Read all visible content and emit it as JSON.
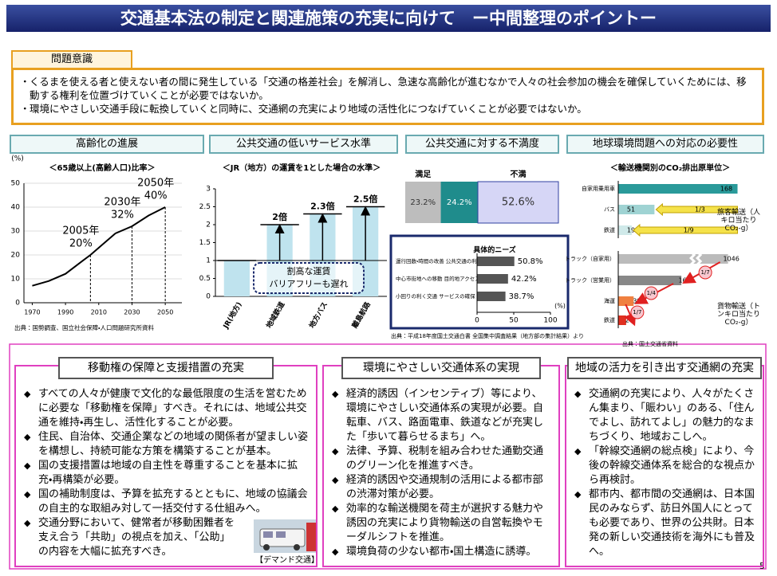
{
  "title": "交通基本法の制定と関連施策の充実に向けて　ー中間整理のポイントー",
  "problem": {
    "label": "問題意識",
    "bullets": [
      "くるまを使える者と使えない者の間に発生している「交通の格差社会」を解消し、急速な高齢化が進むなかで人々の社会参加の機会を確保していくためには、移動する権利を位置づけていくことが必要ではないか。",
      "環境にやさしい交通手段に転換していくと同時に、交通網の充実により地域の活性化につなげていくことが必要ではないか。"
    ]
  },
  "section_headers": [
    "高齢化の進展",
    "公共交通の低いサービス水準",
    "公共交通に対する不満度",
    "地球環境問題への対応の必要性"
  ],
  "chart_data": [
    {
      "type": "line",
      "title": "＜65歳以上(高齢人口)比率＞",
      "y_unit": "(%)",
      "x": [
        1970,
        1980,
        1990,
        2000,
        2005,
        2010,
        2020,
        2030,
        2040,
        2050
      ],
      "values": [
        7.1,
        9.1,
        12.1,
        17.4,
        20,
        23,
        29,
        32,
        36.5,
        40
      ],
      "point_labels": [
        null,
        null,
        null,
        null,
        "2005年",
        null,
        null,
        "2030年",
        null,
        "2050年"
      ],
      "value_labels": [
        null,
        null,
        null,
        null,
        "20%",
        null,
        null,
        "32%",
        null,
        "40%"
      ],
      "xlim": [
        1965,
        2060
      ],
      "xticks": [
        1970,
        1990,
        2010,
        2030,
        2050
      ],
      "ylim": [
        0,
        50
      ],
      "yticks": [
        0,
        10,
        20,
        30,
        40,
        50
      ],
      "color": "#000000",
      "source": "出典：国勢調査、国立社会保障・人口問題研究所資料"
    },
    {
      "type": "bar",
      "title": "＜JR（地方）の運賃を1とした場合の水準＞",
      "categories": [
        "JR(地方)",
        "地域鉄道",
        "地方バス",
        "離島航路"
      ],
      "values": [
        1,
        2,
        2.3,
        2.5
      ],
      "value_labels": [
        null,
        "2倍",
        "2.3倍",
        "2.5倍"
      ],
      "ylim": [
        0,
        3
      ],
      "yticks": [
        0,
        0.5,
        1,
        1.5,
        2,
        2.5,
        3
      ],
      "color": "#bfe3ee",
      "notes": [
        "割高な運賃",
        "バリアフリーも遅れ"
      ]
    },
    {
      "type": "stacked_bar",
      "series": [
        {
          "name": "満足",
          "color": "#bdbdbd",
          "values": [
            23.2
          ],
          "value_labels": [
            "23.2%"
          ]
        },
        {
          "color": "#1f8c8c",
          "values": [
            24.2
          ],
          "value_labels": [
            "24.2%"
          ]
        },
        {
          "name": "不満",
          "color": "#d6d6f6",
          "values": [
            52.6
          ],
          "value_labels": [
            "52.6%"
          ]
        }
      ],
      "xlim": [
        0,
        100
      ],
      "inset": {
        "type": "hbar",
        "legend_title": "具体的ニーズ",
        "categories": [
          "運行回数・時間の改善 公共交通の利便性向上",
          "中心市街地への移動 目的地アクセス向上",
          "小回りの利く交通 サービスの確保"
        ],
        "values": [
          50.8,
          42.2,
          38.7
        ],
        "value_labels": [
          "50.8%",
          "42.2%",
          "38.7%"
        ],
        "xlim": [
          0,
          100
        ],
        "xticks": [
          0,
          50,
          100
        ],
        "x_unit": "(%)",
        "color": "#555555"
      },
      "source": "出典：平成18年度国土交通白書 全国集中調査結果（地方部の集計結果）より"
    },
    {
      "type": "hbar_groups",
      "title": "＜輸送機関別のCO₂排出原単位＞",
      "groups": [
        {
          "label": "旅客輸送（人キロ当たりCO₂-g）",
          "categories": [
            "自家用乗用車",
            "バス",
            "鉄道"
          ],
          "values": [
            168,
            51,
            19
          ],
          "ratio_labels": [
            null,
            "1/3",
            "1/9"
          ],
          "colors": [
            "#2a9a9a",
            "#9fd3d3",
            "#cfe9e9"
          ],
          "xlim": [
            0,
            200
          ]
        },
        {
          "label": "貨物輸送（トンキロ当たりCO₂-g）",
          "categories": [
            "トラック（自家用）",
            "トラック（営業用）",
            "海運",
            "鉄道"
          ],
          "values": [
            1046,
            160,
            39,
            20
          ],
          "ratio_labels": [
            null,
            "1/7",
            "1/4",
            "1/7"
          ],
          "colors": [
            "#bbbbbb",
            "#888888",
            "#f08040",
            "#e03020"
          ],
          "xlim": [
            0,
            1100
          ],
          "axis_break": [
            180,
            1000
          ]
        }
      ],
      "source": "出典：国土交通省資料"
    }
  ],
  "policies": [
    {
      "heading": "移動権の保障と支援措置の充実",
      "bullets": [
        "すべての人々が健康で文化的な最低限度の生活を営むために必要な「移動権を保障」すべき。それには、地域公共交通を維持・再生し、活性化することが必要。",
        "住民、自治体、交通企業などの地域の関係者が望ましい姿を構想し、持続可能な方策を構築することが基本。",
        "国の支援措置は地域の自主性を尊重することを基本に拡充・再構築が必要。",
        "国の補助制度は、予算を拡充するとともに、地域の協議会の自主的な取組み対して一括交付する仕組みへ。",
        "交通分野において、健常者が移動困難者を支え合う「共助」の視点を加え、「公助」の内容を大幅に拡充すべき。"
      ]
    },
    {
      "heading": "環境にやさしい交通体系の実現",
      "bullets": [
        "経済的誘因（インセンティブ）等により、環境にやさしい交通体系の実現が必要。自転車、バス、路面電車、鉄道などが充実した「歩いて暮らせるまち」へ。",
        "法律、予算、税制を組み合わせた通勤交通のグリーン化を推進すべき。",
        "経済的誘因や交通規制の活用による都市部の渋滞対策が必要。",
        "効率的な輸送機関を荷主が選択する魅力や誘因の充実により貨物輸送の自営転換やモーダルシフトを推進。",
        "環境負荷の少ない都市・国土構造に誘導。"
      ]
    },
    {
      "heading": "地域の活力を引き出す交通網の充実",
      "bullets": [
        "交通網の充実により、人々がたくさん集まり、「賑わい」のある、「住んでよし、訪れてよし」の魅力的なまちづくり、地域おこしへ。",
        "「幹線交通網の総点検」により、今後の幹線交通体系を総合的な視点から再検討。",
        "都市内、都市間の交通網は、日本国民のみならず、訪日外国人にとっても必要であり、世界の公共財。日本発の新しい交通技術を海外にも普及へ。"
      ]
    }
  ],
  "photo_caption": "【デマンド交通】",
  "page_number": "5"
}
